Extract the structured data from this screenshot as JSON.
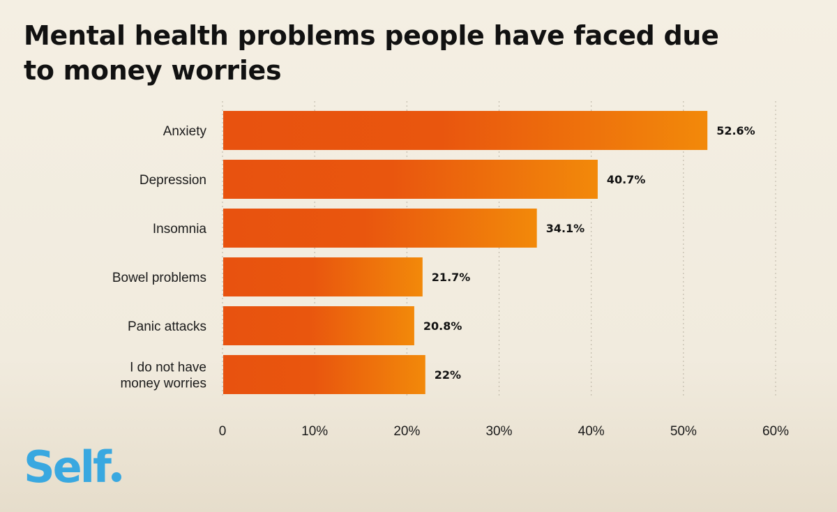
{
  "chart_data": {
    "type": "bar",
    "orientation": "horizontal",
    "title": "Mental health problems people have faced due to money worries",
    "categories": [
      "Anxiety",
      "Depression",
      "Insomnia",
      "Bowel problems",
      "Panic attacks",
      "I do not have money worries"
    ],
    "category_lines": [
      [
        "Anxiety"
      ],
      [
        "Depression"
      ],
      [
        "Insomnia"
      ],
      [
        "Bowel problems"
      ],
      [
        "Panic attacks"
      ],
      [
        "I do not have",
        "money worries"
      ]
    ],
    "values": [
      52.6,
      40.7,
      34.1,
      21.7,
      20.8,
      22
    ],
    "value_labels": [
      "52.6%",
      "40.7%",
      "34.1%",
      "21.7%",
      "20.8%",
      "22%"
    ],
    "xlim": [
      0,
      60
    ],
    "xticks": [
      0,
      10,
      20,
      30,
      40,
      50,
      60
    ],
    "xtick_labels": [
      "0",
      "10%",
      "20%",
      "30%",
      "40%",
      "50%",
      "60%"
    ],
    "grid": "vertical dotted",
    "bar_colors": [
      "#e8520f",
      "#f2890a"
    ]
  },
  "brand": {
    "logo_text": "Self",
    "color": "#39a8e0"
  },
  "colors": {
    "background": "#f3eee2",
    "text": "#111111"
  }
}
